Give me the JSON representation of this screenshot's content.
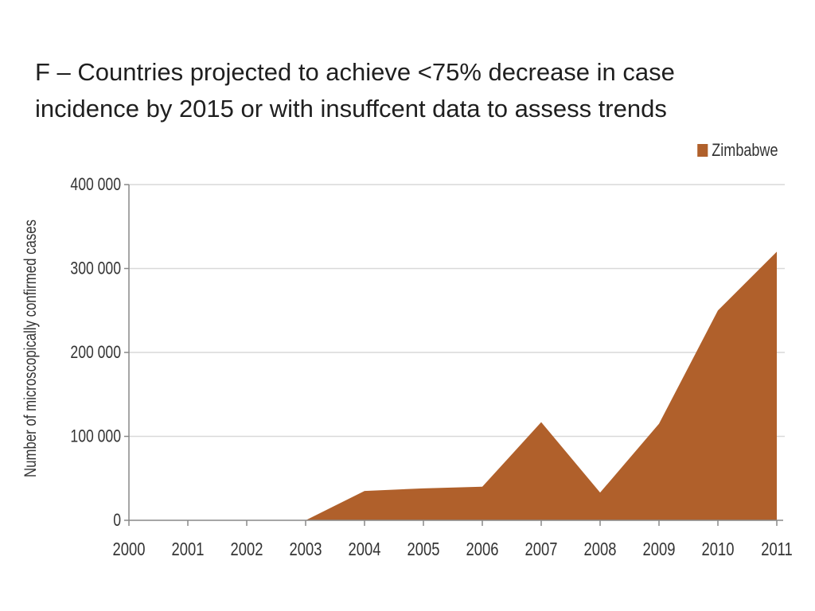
{
  "chart_data": {
    "type": "area",
    "title_lines": [
      "F – Countries projected to achieve <75% decrease in case",
      "incidence by 2015 or with insuffcent data to assess trends"
    ],
    "xlabel": "",
    "ylabel": "Number of microscopically confirmed cases",
    "x": [
      2000,
      2001,
      2002,
      2003,
      2004,
      2005,
      2006,
      2007,
      2008,
      2009,
      2010,
      2011
    ],
    "x_tick_labels": [
      "2000",
      "2001",
      "2002",
      "2003",
      "2004",
      "2005",
      "2006",
      "2007",
      "2008",
      "2009",
      "2010",
      "2011"
    ],
    "series": [
      {
        "name": "Zimbabwe",
        "color": "#b0602b",
        "values": [
          0,
          0,
          0,
          0,
          35000,
          38000,
          40000,
          117000,
          33000,
          115000,
          250000,
          320000
        ]
      }
    ],
    "ylim": [
      0,
      400000
    ],
    "y_ticks": [
      0,
      100000,
      200000,
      300000,
      400000
    ],
    "y_tick_labels": [
      "0",
      "100 000",
      "200 000",
      "300 000",
      "400 000"
    ],
    "grid": "horizontal",
    "legend_position": "top-right",
    "colors": {
      "grid": "#d9d9d9",
      "axis": "#888888",
      "text": "#333333"
    }
  }
}
